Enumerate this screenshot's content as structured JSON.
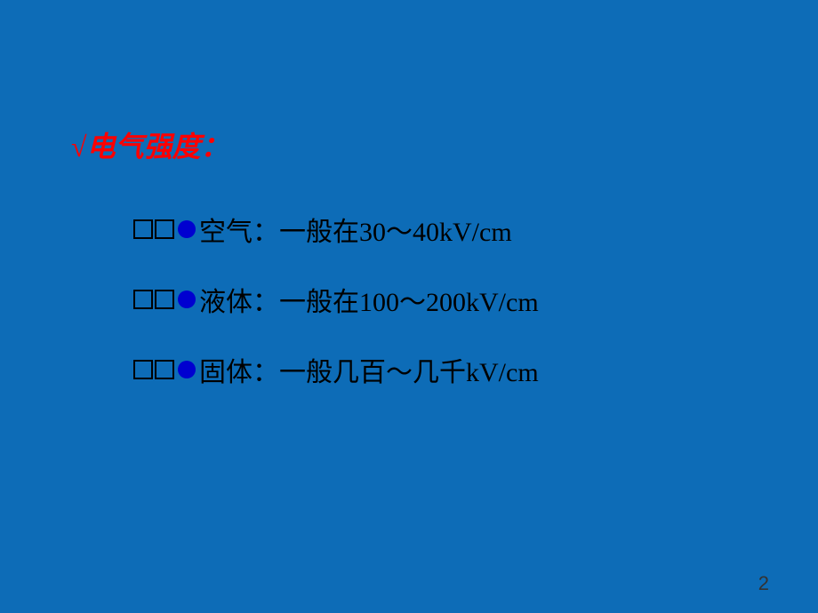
{
  "heading": {
    "check": "√",
    "text": "电气强度："
  },
  "items": [
    {
      "label": "空气：一般在30～40kV/cm"
    },
    {
      "label": "液体：一般在100～200kV/cm"
    },
    {
      "label": "固体：一般几百～几千kV/cm"
    }
  ],
  "page_number": "2",
  "colors": {
    "background": "#0d6cb7",
    "heading": "#ff0000",
    "text": "#000000",
    "bullet": "#0000d0"
  }
}
